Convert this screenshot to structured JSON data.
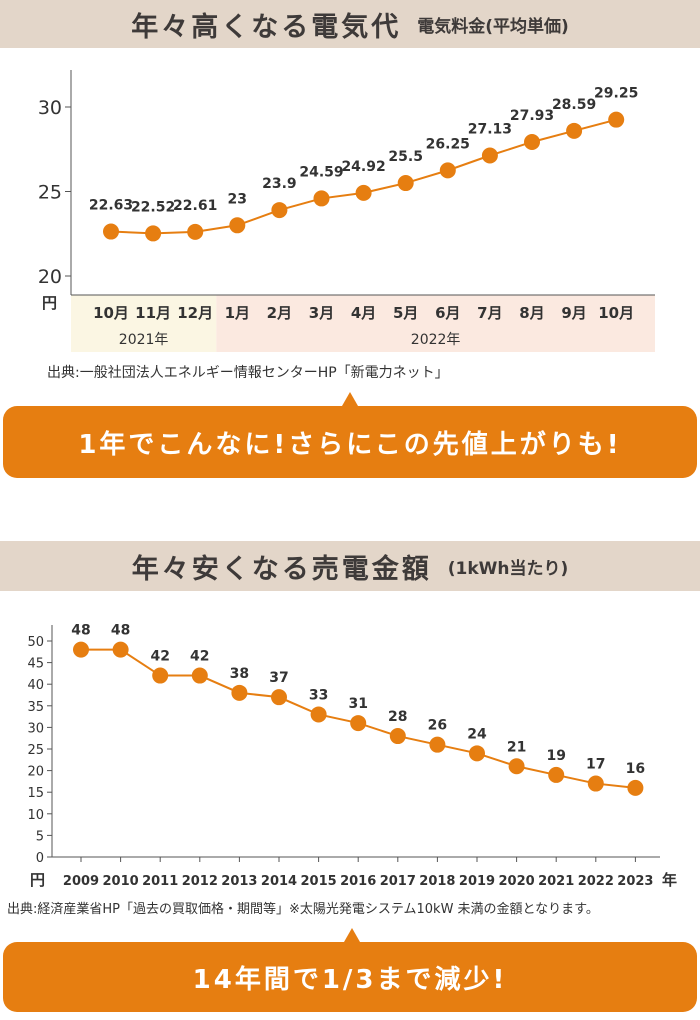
{
  "section1": {
    "title": "年々高くなる電気代",
    "subtitle": "電気料金(平均単価)",
    "source": "出典:一般社団法人エネルギー情報センターHP「新電力ネット」",
    "banner": "1年でこんなに!さらにこの先値上がりも!"
  },
  "section2": {
    "title": "年々安くなる売電金額",
    "subtitle": "(1kWh当たり)",
    "source": "出典:経済産業省HP「過去の買取価格・期間等」※太陽光発電システム10kW 未満の金額となります。",
    "banner": "14年間で1/3まで減少!"
  },
  "chart_data": [
    {
      "type": "line",
      "categories": [
        "10月",
        "11月",
        "12月",
        "1月",
        "2月",
        "3月",
        "4月",
        "5月",
        "6月",
        "7月",
        "8月",
        "9月",
        "10月"
      ],
      "year_groups": [
        {
          "label": "2021年",
          "start": 0,
          "end": 2,
          "color": "#fbf6e3"
        },
        {
          "label": "2022年",
          "start": 3,
          "end": 12,
          "color": "#fbe9e0"
        }
      ],
      "values": [
        22.63,
        22.52,
        22.61,
        23,
        23.9,
        24.59,
        24.92,
        25.5,
        26.25,
        27.13,
        27.93,
        28.59,
        29.25
      ],
      "value_labels": [
        "22.63",
        "22.52",
        "22.61",
        "23",
        "23.9",
        "24.59",
        "24.92",
        "25.5",
        "26.25",
        "27.13",
        "27.93",
        "28.59",
        "29.25"
      ],
      "yticks": [
        20,
        25,
        30
      ],
      "ylim": [
        20,
        30
      ],
      "yunit": "円",
      "color": "#e67e11"
    },
    {
      "type": "line",
      "categories": [
        "2009",
        "2010",
        "2011",
        "2012",
        "2013",
        "2014",
        "2015",
        "2016",
        "2017",
        "2018",
        "2019",
        "2020",
        "2021",
        "2022",
        "2023"
      ],
      "values": [
        48,
        48,
        42,
        42,
        38,
        37,
        33,
        31,
        28,
        26,
        24,
        21,
        19,
        17,
        16
      ],
      "yticks": [
        0,
        5,
        10,
        15,
        20,
        25,
        30,
        35,
        40,
        45,
        50
      ],
      "ylim": [
        0,
        50
      ],
      "yunit": "円",
      "xunit": "年",
      "color": "#e67e11"
    }
  ]
}
